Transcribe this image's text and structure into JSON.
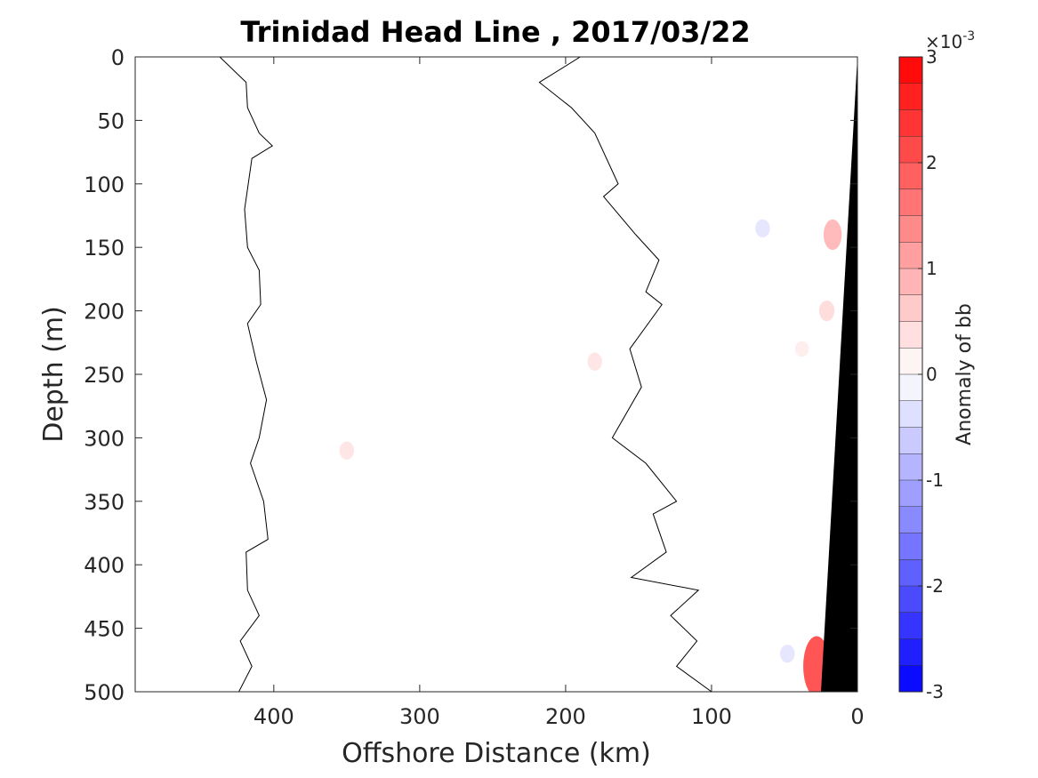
{
  "chart_data": {
    "type": "contour",
    "title": "Trinidad Head Line , 2017/03/22",
    "xlabel": "Offshore Distance (km)",
    "ylabel": "Depth (m)",
    "xlim": [
      0,
      495
    ],
    "x_reversed": true,
    "ylim": [
      0,
      500
    ],
    "y_reversed": true,
    "xticks": [
      400,
      300,
      200,
      100,
      0
    ],
    "xtick_labels": [
      "400",
      "300",
      "200",
      "100",
      "0"
    ],
    "yticks": [
      0,
      50,
      100,
      150,
      200,
      250,
      300,
      350,
      400,
      450,
      500
    ],
    "ytick_labels": [
      "0",
      "50",
      "100",
      "150",
      "200",
      "250",
      "300",
      "350",
      "400",
      "450",
      "500"
    ],
    "colorbar": {
      "label": "Anomaly of bb",
      "exponent_label": "×10",
      "exponent_power": "-3",
      "min": -3,
      "max": 3,
      "levels": 24,
      "ticks": [
        3,
        2,
        1,
        0,
        -1,
        -2,
        -3
      ],
      "tick_labels": [
        "3",
        "2",
        "1",
        "0",
        "-1",
        "-2",
        "-3"
      ],
      "neg_color": "#0000ff",
      "zero_color": "#ffffff",
      "pos_color": "#ff0000"
    },
    "zero_contours": [
      [
        [
          437,
          0
        ],
        [
          419,
          20
        ],
        [
          418,
          40
        ],
        [
          410,
          60
        ],
        [
          401,
          70
        ],
        [
          415,
          80
        ],
        [
          420,
          120
        ],
        [
          418,
          150
        ],
        [
          410,
          168
        ],
        [
          409,
          195
        ],
        [
          418,
          210
        ],
        [
          412,
          240
        ],
        [
          405,
          270
        ],
        [
          410,
          300
        ],
        [
          416,
          320
        ],
        [
          407,
          350
        ],
        [
          404,
          380
        ],
        [
          419,
          390
        ],
        [
          418,
          420
        ],
        [
          410,
          440
        ],
        [
          423,
          460
        ],
        [
          415,
          480
        ],
        [
          424,
          500
        ]
      ],
      [
        [
          190,
          0
        ],
        [
          218,
          20
        ],
        [
          196,
          40
        ],
        [
          180,
          60
        ],
        [
          164,
          100
        ],
        [
          174,
          110
        ],
        [
          152,
          140
        ],
        [
          136,
          160
        ],
        [
          145,
          185
        ],
        [
          134,
          195
        ],
        [
          156,
          230
        ],
        [
          148,
          260
        ],
        [
          168,
          300
        ],
        [
          145,
          320
        ],
        [
          124,
          350
        ],
        [
          140,
          360
        ],
        [
          131,
          390
        ],
        [
          155,
          410
        ],
        [
          109,
          420
        ],
        [
          128,
          440
        ],
        [
          110,
          460
        ],
        [
          124,
          480
        ],
        [
          100,
          500
        ]
      ]
    ],
    "bathymetry": {
      "color": "#000000",
      "coast_x": 0,
      "bottom_x": 25
    },
    "anomaly_patches": [
      {
        "x": 17,
        "y": 140,
        "value": 0.8
      },
      {
        "x": 21,
        "y": 200,
        "value": 0.4
      },
      {
        "x": 38,
        "y": 230,
        "value": 0.2
      },
      {
        "x": 28,
        "y": 480,
        "value": 2.0
      },
      {
        "x": 180,
        "y": 240,
        "value": 0.3
      },
      {
        "x": 350,
        "y": 310,
        "value": 0.3
      },
      {
        "x": 65,
        "y": 135,
        "value": -0.3
      },
      {
        "x": 48,
        "y": 470,
        "value": -0.3
      }
    ]
  }
}
